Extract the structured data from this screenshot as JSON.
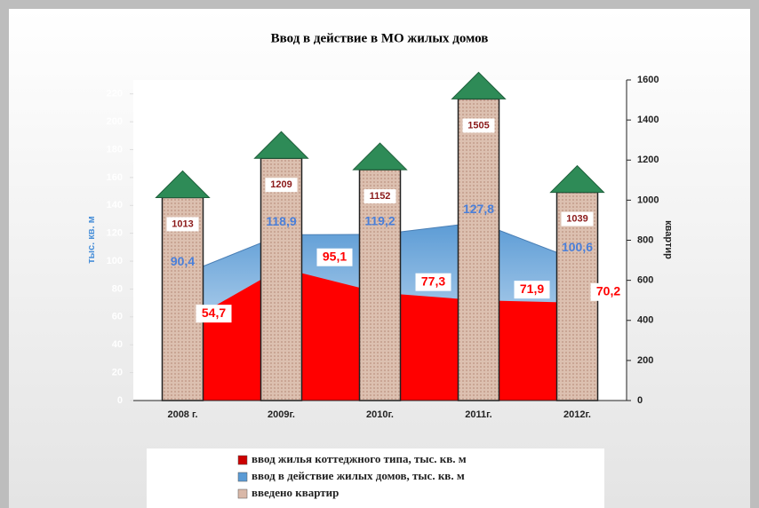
{
  "chart_data": {
    "type": "area-bar",
    "title": "Ввод в действие в МО жилых домов",
    "categories": [
      "2008 г.",
      "2009г.",
      "2010г.",
      "2011г.",
      "2012г."
    ],
    "y_label": "тыс. кв. м",
    "y2_label": "квартир",
    "ylim": [
      0,
      230
    ],
    "yticks": [
      0,
      20,
      40,
      60,
      80,
      100,
      120,
      140,
      160,
      180,
      200,
      220
    ],
    "y2lim": [
      0,
      1600
    ],
    "y2ticks": [
      0,
      200,
      400,
      600,
      800,
      1000,
      1200,
      1400,
      1600
    ],
    "series": [
      {
        "name": "ввод жилья коттеджного типа, тыс. кв. м",
        "type": "area",
        "color": "#ff0000",
        "values": [
          54.7,
          95.1,
          77.3,
          71.9,
          70.2
        ],
        "value_labels": [
          "54,7",
          "95,1",
          "77,3",
          "71,9",
          "70,2"
        ]
      },
      {
        "name": "ввод в действие жилых домов, тыс. кв. м",
        "type": "area",
        "color": "#5b9bd5",
        "values": [
          90.4,
          118.9,
          119.2,
          127.8,
          100.6
        ],
        "value_labels": [
          "90,4",
          "118,9",
          "119,2",
          "127,8",
          "100,6"
        ]
      },
      {
        "name": "введено квартир",
        "type": "bar",
        "axis": "y2",
        "color": "#d9b8a8",
        "values": [
          1013,
          1209,
          1152,
          1505,
          1039
        ]
      }
    ]
  }
}
